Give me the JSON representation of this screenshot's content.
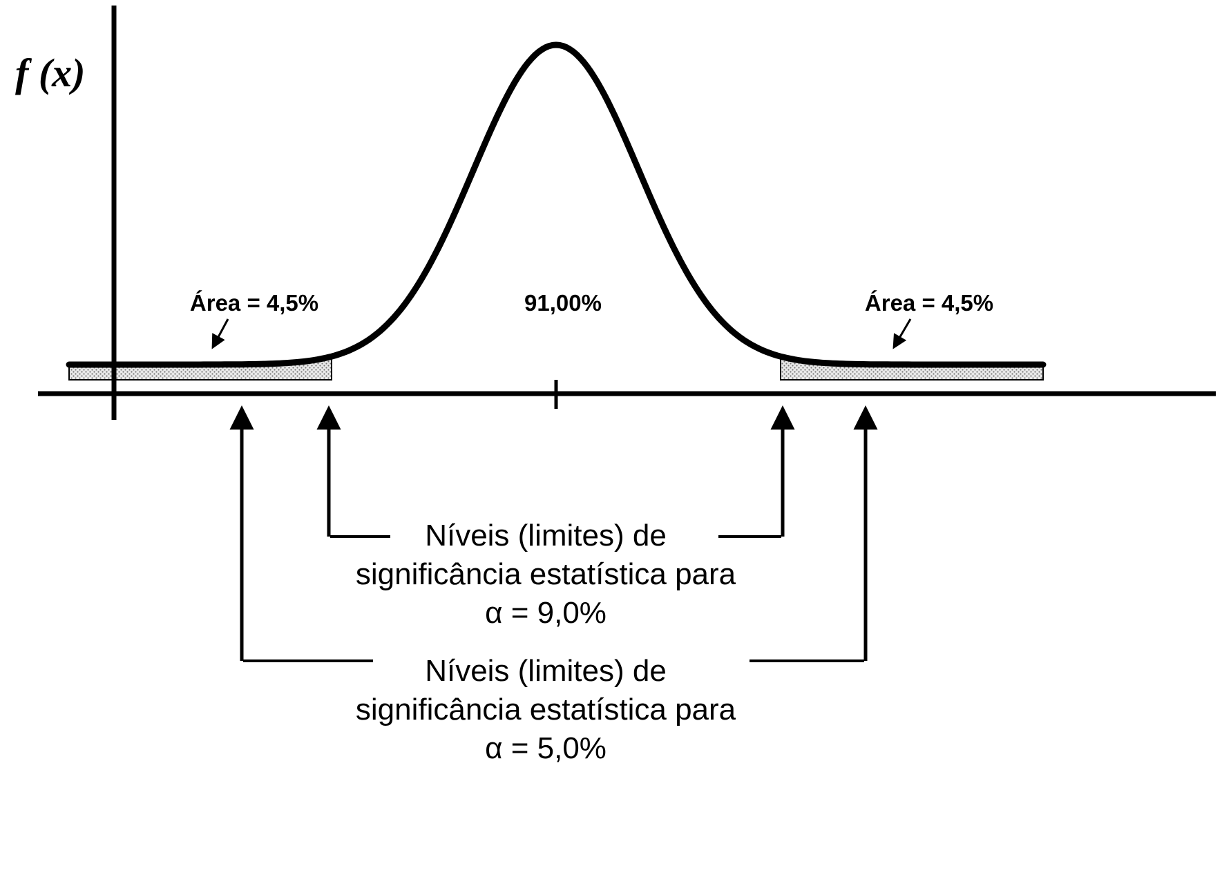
{
  "figure": {
    "y_axis_label": "f (x)",
    "center_area_label": "91,00%",
    "left_tail_label": "Área = 4,5%",
    "right_tail_label": "Área = 4,5%",
    "significance_9": {
      "line1": "Níveis (limites) de",
      "line2": "significância estatística para",
      "line3": "α = 9,0%"
    },
    "significance_5": {
      "line1": "Níveis (limites) de",
      "line2": "significância estatística para",
      "line3": "α = 5,0%"
    }
  },
  "chart_data": {
    "type": "area",
    "curve": "normal-distribution-density",
    "ylabel": "f (x)",
    "central_area_pct": 91.0,
    "left_tail_area_pct": 4.5,
    "right_tail_area_pct": 4.5,
    "significance_levels_pct": [
      9.0,
      5.0
    ]
  },
  "colors": {
    "stroke": "#000000",
    "hatch_dot": "#777777",
    "hatch_bg": "#e9e9e9",
    "background": "#ffffff"
  }
}
